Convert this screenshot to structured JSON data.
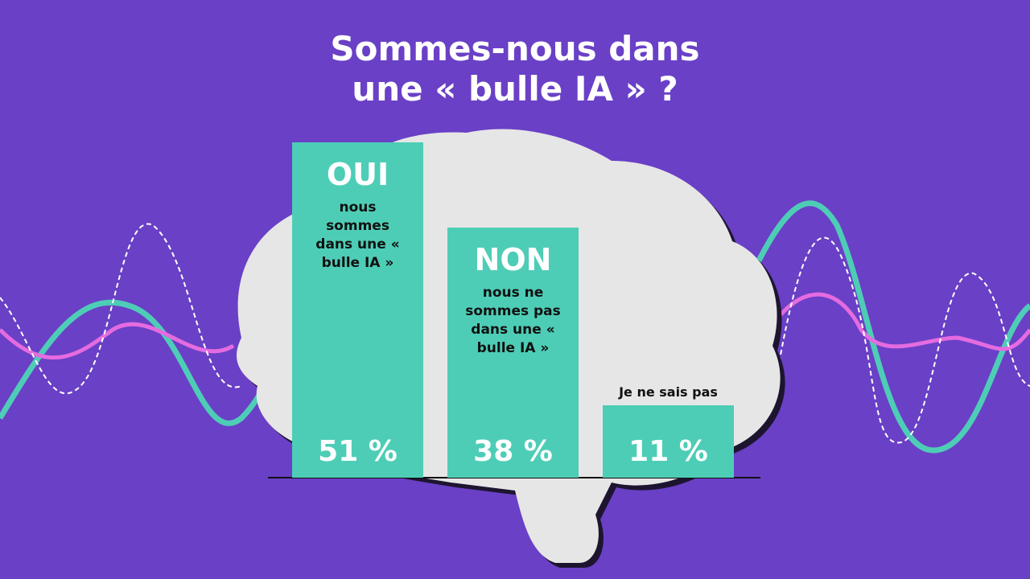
{
  "chart_data": {
    "type": "bar",
    "title": "Sommes-nous dans une « bulle IA » ?",
    "categories": [
      "OUI",
      "NON",
      "Je ne sais pas"
    ],
    "descriptions": [
      "nous sommes dans une « bulle IA »",
      "nous ne sommes pas dans une « bulle IA »",
      null
    ],
    "values": [
      51,
      38,
      11
    ],
    "value_labels": [
      "51 %",
      "38 %",
      "11 %"
    ],
    "color": "#4ecdb6"
  }
}
